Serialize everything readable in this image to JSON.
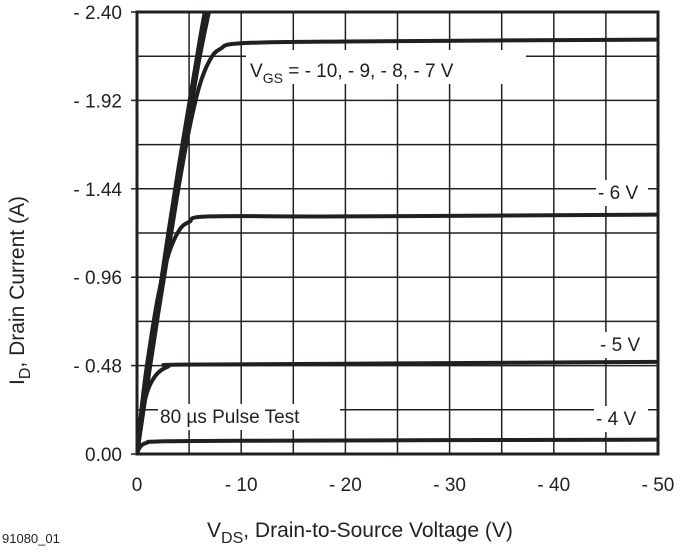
{
  "chart_data": {
    "type": "line",
    "xlabel_main": "V",
    "xlabel_sub": "DS",
    "xlabel_rest": ", Drain-to-Source Voltage (V)",
    "ylabel_main": "I",
    "ylabel_sub": "D",
    "ylabel_rest": ", Drain Current (A)",
    "xlim": [
      0,
      -50
    ],
    "ylim": [
      0,
      -2.4
    ],
    "x_ticks": [
      0,
      -10,
      -20,
      -30,
      -40,
      -50
    ],
    "x_tick_labels": [
      "0",
      "- 10",
      "- 20",
      "- 30",
      "- 40",
      "- 50"
    ],
    "y_ticks": [
      0,
      -0.48,
      -0.96,
      -1.44,
      -1.92,
      -2.4
    ],
    "y_tick_labels": [
      "0.00",
      "- 0.48",
      "- 0.96",
      "- 1.44",
      "- 1.92",
      "- 2.40"
    ],
    "x_grid_step": -5,
    "y_grid_step": -0.24,
    "grid": true,
    "line_color": "#231f20",
    "series": [
      {
        "name": "- 10 V",
        "points": [
          [
            0,
            0
          ],
          [
            -1,
            -0.42
          ],
          [
            -2,
            -0.82
          ],
          [
            -3,
            -1.2
          ],
          [
            -4,
            -1.56
          ],
          [
            -5,
            -1.9
          ],
          [
            -6,
            -2.24
          ],
          [
            -6.5,
            -2.4
          ]
        ]
      },
      {
        "name": "- 9 V",
        "points": [
          [
            0,
            0
          ],
          [
            -1,
            -0.4
          ],
          [
            -2,
            -0.79
          ],
          [
            -3,
            -1.16
          ],
          [
            -4,
            -1.52
          ],
          [
            -5,
            -1.86
          ],
          [
            -6,
            -2.2
          ],
          [
            -6.7,
            -2.4
          ]
        ]
      },
      {
        "name": "- 8 V",
        "points": [
          [
            0,
            0
          ],
          [
            -1,
            -0.39
          ],
          [
            -2,
            -0.77
          ],
          [
            -3,
            -1.13
          ],
          [
            -4,
            -1.48
          ],
          [
            -5,
            -1.82
          ],
          [
            -6,
            -2.15
          ],
          [
            -6.9,
            -2.4
          ]
        ]
      },
      {
        "name": "- 7 V",
        "points": [
          [
            0,
            0
          ],
          [
            -1,
            -0.38
          ],
          [
            -2,
            -0.75
          ],
          [
            -3,
            -1.1
          ],
          [
            -4,
            -1.45
          ],
          [
            -5,
            -1.76
          ],
          [
            -6,
            -2.0
          ],
          [
            -7,
            -2.14
          ],
          [
            -8,
            -2.2
          ],
          [
            -10,
            -2.23
          ],
          [
            -20,
            -2.24
          ],
          [
            -50,
            -2.25
          ]
        ]
      },
      {
        "name": "- 6 V",
        "points": [
          [
            0,
            0
          ],
          [
            -0.5,
            -0.28
          ],
          [
            -1,
            -0.5
          ],
          [
            -2,
            -0.85
          ],
          [
            -3,
            -1.08
          ],
          [
            -4,
            -1.21
          ],
          [
            -5,
            -1.26
          ],
          [
            -7,
            -1.29
          ],
          [
            -20,
            -1.29
          ],
          [
            -50,
            -1.3
          ]
        ]
      },
      {
        "name": "- 5 V",
        "points": [
          [
            0,
            0
          ],
          [
            -0.3,
            -0.16
          ],
          [
            -0.7,
            -0.28
          ],
          [
            -1.2,
            -0.37
          ],
          [
            -2,
            -0.44
          ],
          [
            -3,
            -0.475
          ],
          [
            -4,
            -0.485
          ],
          [
            -20,
            -0.49
          ],
          [
            -50,
            -0.5
          ]
        ]
      },
      {
        "name": "- 4 V",
        "points": [
          [
            0,
            0
          ],
          [
            -0.2,
            -0.03
          ],
          [
            -0.5,
            -0.05
          ],
          [
            -1,
            -0.062
          ],
          [
            -2,
            -0.068
          ],
          [
            -10,
            -0.072
          ],
          [
            -50,
            -0.078
          ]
        ]
      }
    ],
    "annotations": {
      "vgs_prefix": "V",
      "vgs_sub": "GS",
      "vgs_rest": " = - 10, - 9, - 8, - 7 V",
      "v6": "- 6 V",
      "v5": "- 5 V",
      "v4": "- 4 V",
      "pulse": "80 µs Pulse Test"
    },
    "figure_id": "91080_01"
  }
}
